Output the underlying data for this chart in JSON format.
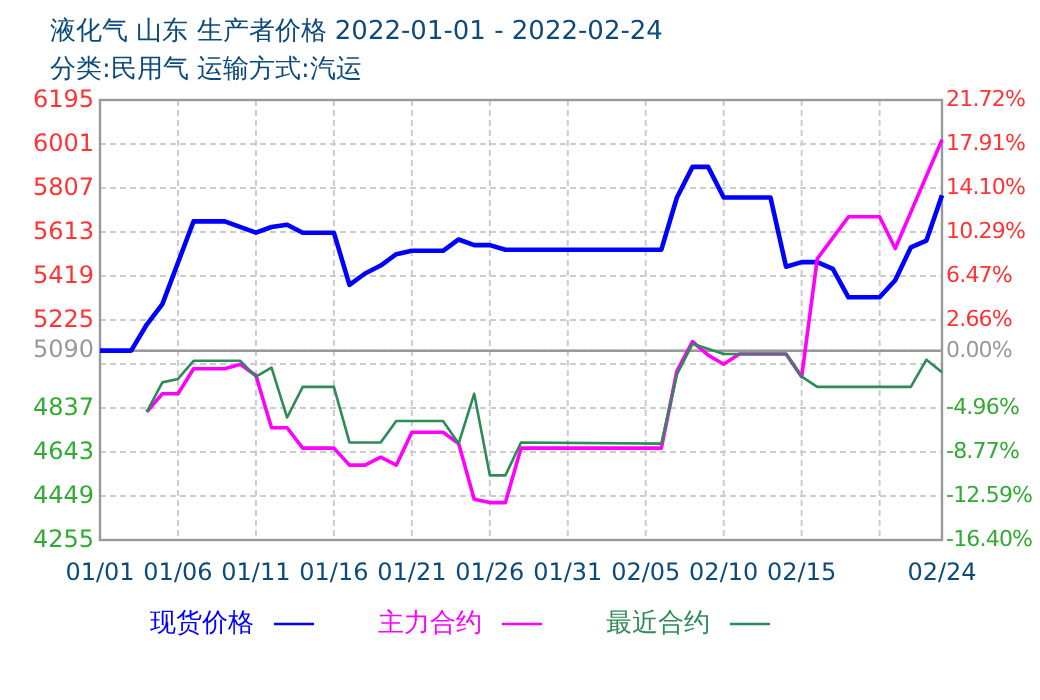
{
  "chart_data": {
    "type": "line",
    "title": "液化气 山东 生产者价格 2022-01-01 - 2022-02-24",
    "subtitle": "分类:民用气 运输方式:汽运",
    "xlim": [
      "2022-01-01",
      "2022-02-24"
    ],
    "xticks": [
      {
        "value": "2022-01-01",
        "label": "01/01"
      },
      {
        "value": "2022-01-06",
        "label": "01/06"
      },
      {
        "value": "2022-01-11",
        "label": "01/11"
      },
      {
        "value": "2022-01-16",
        "label": "01/16"
      },
      {
        "value": "2022-01-21",
        "label": "01/21"
      },
      {
        "value": "2022-01-26",
        "label": "01/26"
      },
      {
        "value": "2022-01-31",
        "label": "01/31"
      },
      {
        "value": "2022-02-05",
        "label": "02/05"
      },
      {
        "value": "2022-02-10",
        "label": "02/10"
      },
      {
        "value": "2022-02-15",
        "label": "02/15"
      },
      {
        "value": "2022-02-20",
        "label": null
      },
      {
        "value": "2022-02-24",
        "label": "02/24"
      }
    ],
    "ylim": [
      4255,
      6195
    ],
    "yticks": [
      4255,
      4449,
      4643,
      4837,
      {
        "value": 5031,
        "label": null
      },
      5090,
      5225,
      5419,
      5613,
      5807,
      6001,
      6195
    ],
    "y2lim": [
      -16.4,
      21.72
    ],
    "y2ticks": [
      {
        "value": -16.4,
        "label": "-16.40%"
      },
      {
        "value": -12.59,
        "label": "-12.59%"
      },
      {
        "value": -8.77,
        "label": "-8.77%"
      },
      {
        "value": -4.96,
        "label": "-4.96%"
      },
      {
        "value": 0,
        "label": "0.00%"
      },
      {
        "value": 2.66,
        "label": "2.66%"
      },
      {
        "value": 6.47,
        "label": "6.47%"
      },
      {
        "value": 10.29,
        "label": "10.29%"
      },
      {
        "value": 14.1,
        "label": "14.10%"
      },
      {
        "value": 17.91,
        "label": "17.91%"
      },
      {
        "value": 21.72,
        "label": "21.72%"
      }
    ],
    "ref_lines": [
      {
        "axis": "y2",
        "value": 0,
        "color": "#999999"
      }
    ],
    "grid": true,
    "legend": "bottom",
    "marker": "none",
    "line_style": "solid",
    "series": [
      {
        "name": "现货价格",
        "color": "#0000ff",
        "x": [
          "2022-01-01",
          "2022-01-03",
          "2022-01-04",
          "2022-01-05",
          "2022-01-07",
          "2022-01-09",
          "2022-01-11",
          "2022-01-12",
          "2022-01-13",
          "2022-01-14",
          "2022-01-16",
          "2022-01-17",
          "2022-01-18",
          "2022-01-19",
          "2022-01-20",
          "2022-01-21",
          "2022-01-23",
          "2022-01-24",
          "2022-01-25",
          "2022-01-26",
          "2022-01-27",
          "2022-02-06",
          "2022-02-07",
          "2022-02-08",
          "2022-02-09",
          "2022-02-10",
          "2022-02-13",
          "2022-02-14",
          "2022-02-15",
          "2022-02-16",
          "2022-02-17",
          "2022-02-18",
          "2022-02-20",
          "2022-02-21",
          "2022-02-22",
          "2022-02-23",
          "2022-02-24"
        ],
        "values": [
          5090,
          5090,
          5205,
          5295,
          5660,
          5660,
          5610,
          5635,
          5645,
          5610,
          5610,
          5380,
          5430,
          5465,
          5515,
          5530,
          5530,
          5580,
          5555,
          5555,
          5535,
          5535,
          5765,
          5900,
          5900,
          5765,
          5765,
          5460,
          5480,
          5480,
          5450,
          5325,
          5325,
          5400,
          5545,
          5575,
          5775
        ]
      },
      {
        "name": "主力合约",
        "color": "#ff00ff",
        "x": [
          "2022-01-04",
          "2022-01-05",
          "2022-01-06",
          "2022-01-07",
          "2022-01-09",
          "2022-01-10",
          "2022-01-11",
          "2022-01-12",
          "2022-01-13",
          "2022-01-14",
          "2022-01-16",
          "2022-01-17",
          "2022-01-18",
          "2022-01-19",
          "2022-01-20",
          "2022-01-21",
          "2022-01-23",
          "2022-01-24",
          "2022-01-25",
          "2022-01-26",
          "2022-01-27",
          "2022-01-28",
          "2022-02-06",
          "2022-02-07",
          "2022-02-08",
          "2022-02-09",
          "2022-02-10",
          "2022-02-11",
          "2022-02-14",
          "2022-02-15",
          "2022-02-16",
          "2022-02-18",
          "2022-02-20",
          "2022-02-21",
          "2022-02-24"
        ],
        "values": [
          4820,
          4900,
          4900,
          5010,
          5010,
          5030,
          4980,
          4750,
          4750,
          4660,
          4660,
          4585,
          4585,
          4620,
          4585,
          4730,
          4730,
          4680,
          4435,
          4420,
          4420,
          4660,
          4660,
          5000,
          5130,
          5070,
          5030,
          5075,
          5075,
          4975,
          5495,
          5680,
          5680,
          5540,
          6020
        ]
      },
      {
        "name": "最近合约",
        "color": "#2e8b57",
        "x": [
          "2022-01-04",
          "2022-01-05",
          "2022-01-06",
          "2022-01-07",
          "2022-01-10",
          "2022-01-11",
          "2022-01-12",
          "2022-01-13",
          "2022-01-14",
          "2022-01-16",
          "2022-01-17",
          "2022-01-19",
          "2022-01-20",
          "2022-01-23",
          "2022-01-24",
          "2022-01-25",
          "2022-01-26",
          "2022-01-27",
          "2022-01-28",
          "2022-02-06",
          "2022-02-07",
          "2022-02-08",
          "2022-02-10",
          "2022-02-14",
          "2022-02-15",
          "2022-02-16",
          "2022-02-22",
          "2022-02-23",
          "2022-02-24"
        ],
        "values": [
          4820,
          4950,
          4965,
          5045,
          5045,
          4975,
          5015,
          4795,
          4930,
          4930,
          4685,
          4685,
          4780,
          4780,
          4680,
          4900,
          4540,
          4540,
          4685,
          4680,
          4985,
          5120,
          5075,
          5075,
          4975,
          4930,
          4930,
          5050,
          4995
        ]
      }
    ]
  }
}
